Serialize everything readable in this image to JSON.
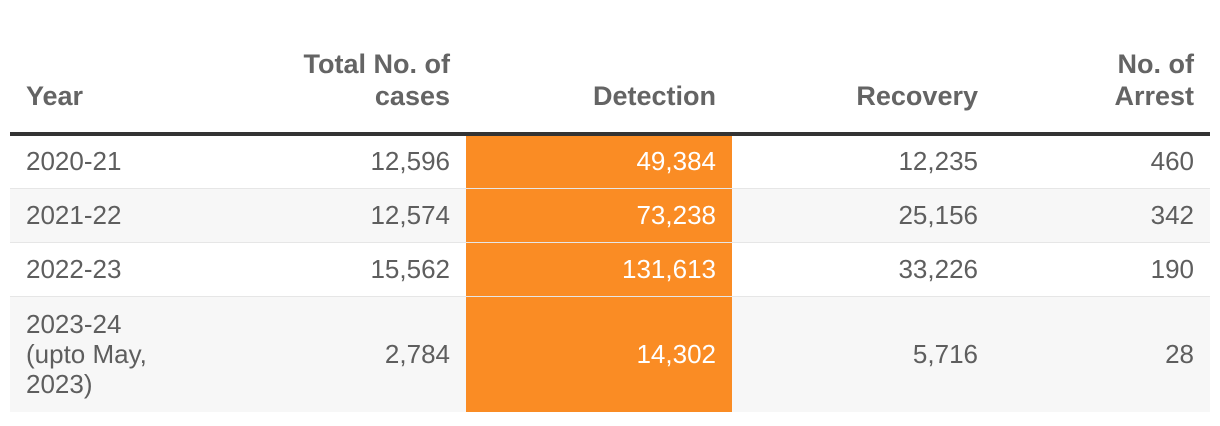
{
  "chart_data": {
    "type": "table",
    "columns": [
      "Year",
      "Total No. of cases",
      "Detection",
      "Recovery",
      "No. of Arrest"
    ],
    "header": {
      "year": "Year",
      "total_line1": "Total No. of",
      "total_line2": "cases",
      "detection": "Detection",
      "recovery": "Recovery",
      "arrest_line1": "No. of",
      "arrest_line2": "Arrest"
    },
    "rows": [
      {
        "year": "2020-21",
        "total": "12,596",
        "detection": "49,384",
        "recovery": "12,235",
        "arrest": "460"
      },
      {
        "year": "2021-22",
        "total": "12,574",
        "detection": "73,238",
        "recovery": "25,156",
        "arrest": "342"
      },
      {
        "year": "2022-23",
        "total": "15,562",
        "detection": "131,613",
        "recovery": "33,226",
        "arrest": "190"
      },
      {
        "year_line1": "2023-24",
        "year_line2": "(upto May,",
        "year_line3": "2023)",
        "total": "2,784",
        "detection": "14,302",
        "recovery": "5,716",
        "arrest": "28"
      }
    ],
    "highlight_column": "Detection",
    "highlight_color": "#fa8c24"
  }
}
